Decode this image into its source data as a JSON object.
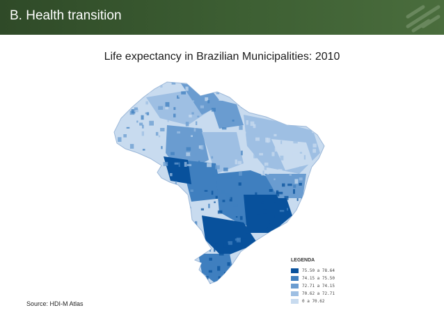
{
  "header": {
    "title": "B. Health transition"
  },
  "map": {
    "title": "Life expectancy in Brazilian Municipalities: 2010",
    "region": "Brazil",
    "legend": {
      "title": "LEGENDA",
      "classes": [
        {
          "label": "75.50 a 78.64",
          "color": "#08519c"
        },
        {
          "label": "74.15 a 75.50",
          "color": "#3f7fbf"
        },
        {
          "label": "72.71 a 74.15",
          "color": "#6a9cd0"
        },
        {
          "label": "70.62 a 72.71",
          "color": "#9ebfe3"
        },
        {
          "label": "0 a 70.62",
          "color": "#c8dbef"
        }
      ]
    }
  },
  "source": "Source: HDI-M Atlas"
}
